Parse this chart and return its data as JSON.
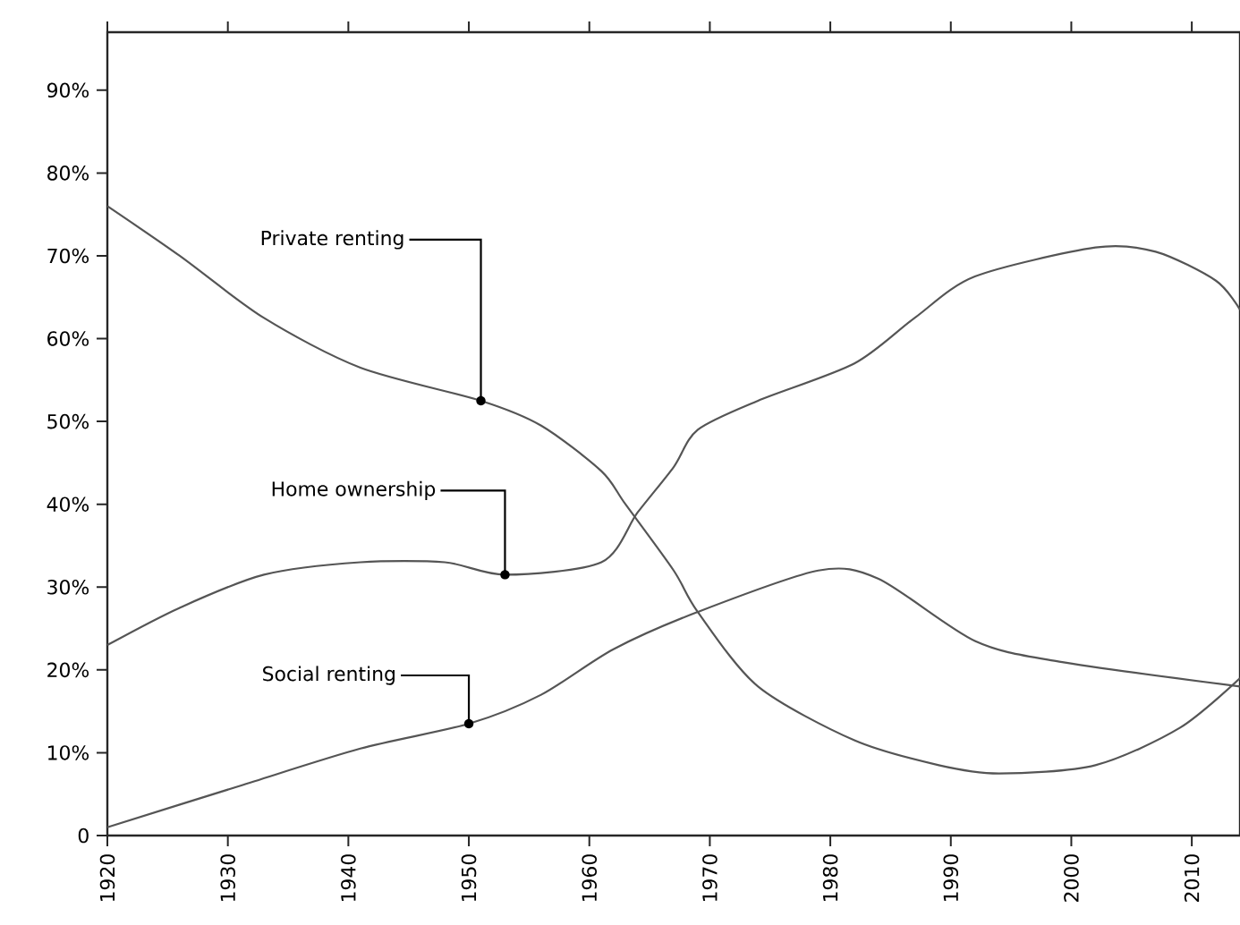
{
  "chart_data": {
    "type": "line",
    "xlim": [
      1920,
      2014
    ],
    "ylim": [
      0,
      97
    ],
    "xticks": [
      1920,
      1930,
      1940,
      1950,
      1960,
      1970,
      1980,
      1990,
      2000,
      2010
    ],
    "yticks": [
      0,
      {
        "value": 10,
        "label": "10%"
      },
      {
        "value": 20,
        "label": "20%"
      },
      {
        "value": 30,
        "label": "30%"
      },
      {
        "value": 40,
        "label": "40%"
      },
      {
        "value": 50,
        "label": "50%"
      },
      {
        "value": 60,
        "label": "60%"
      },
      {
        "value": 70,
        "label": "70%"
      },
      {
        "value": 80,
        "label": "80%"
      },
      {
        "value": 90,
        "label": "90%"
      }
    ],
    "grid": false,
    "legend": false,
    "marker": "none",
    "line_style": "solid",
    "series": [
      {
        "color": "#555555",
        "x": [
          1920,
          1926,
          1933,
          1941,
          1951,
          1956,
          1961,
          1963,
          1967,
          1969,
          1974,
          1982,
          1989,
          1994,
          2002,
          2009,
          2014
        ],
        "values": [
          76,
          70,
          62.5,
          56.5,
          52.5,
          49.5,
          44,
          40,
          32,
          27,
          18,
          11.5,
          8.5,
          7.5,
          8.5,
          13,
          19
        ]
      },
      {
        "color": "#555555",
        "x": [
          1920,
          1926,
          1933,
          1941,
          1948,
          1953,
          1961,
          1964,
          1967,
          1969,
          1974,
          1982,
          1987,
          1992,
          2002,
          2007,
          2012,
          2014
        ],
        "values": [
          23,
          27.5,
          31.5,
          33,
          33,
          31.5,
          33,
          39,
          44.5,
          49,
          52.5,
          57,
          62.5,
          67.5,
          71,
          70.5,
          67,
          63.5
        ]
      },
      {
        "color": "#555555",
        "x": [
          1920,
          1931,
          1941,
          1950,
          1956,
          1962,
          1969,
          1979,
          1984,
          1992,
          1999,
          2014
        ],
        "values": [
          1,
          6,
          10.5,
          13.5,
          17,
          22.5,
          27,
          32,
          31,
          23.5,
          21,
          18
        ]
      }
    ],
    "annotations": [
      {
        "text": "Private renting",
        "x": 1951,
        "y": 52.5
      },
      {
        "text": "Home ownership",
        "x": 1953,
        "y": 31.5
      },
      {
        "text": "Social renting",
        "x": 1950,
        "y": 13.5
      }
    ]
  }
}
